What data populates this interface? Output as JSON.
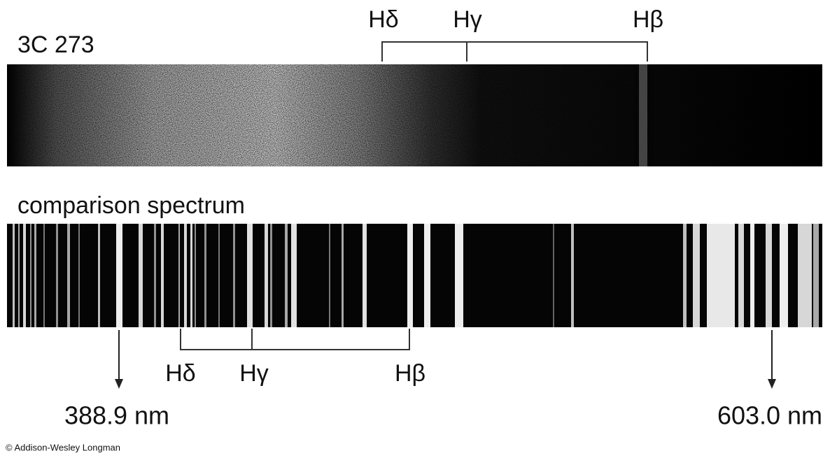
{
  "quasar_label": "3C 273",
  "comparison_label": "comparison spectrum",
  "top_lines": [
    "Hδ",
    "Hγ",
    "Hβ"
  ],
  "bottom_lines": [
    "Hδ",
    "Hγ",
    "Hβ"
  ],
  "markers": [
    "388.9 nm",
    "603.0 nm"
  ],
  "credit": "© Addison-Wesley Longman"
}
